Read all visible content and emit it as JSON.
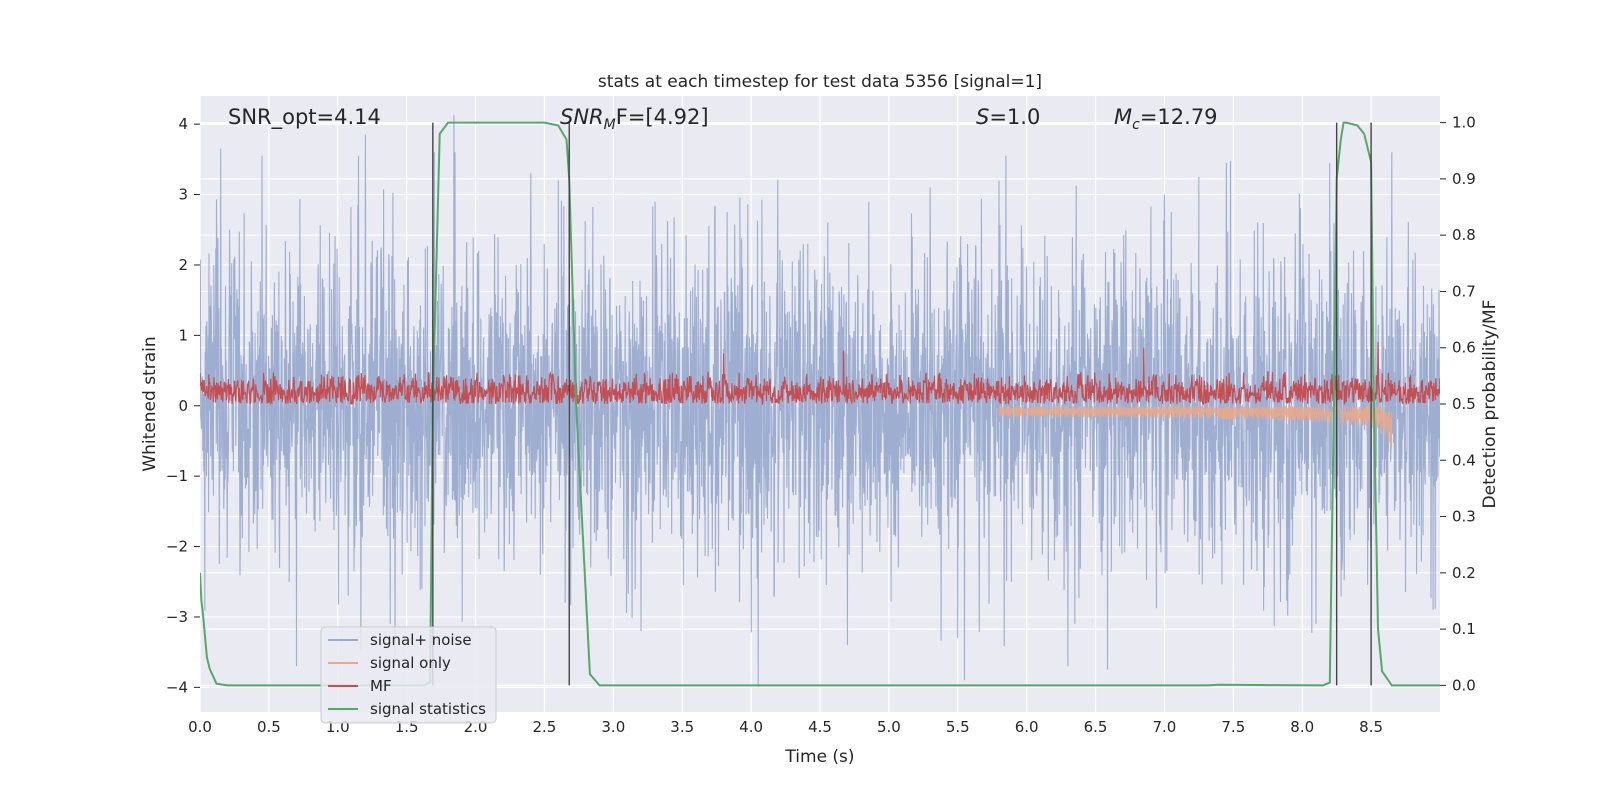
{
  "chart_data": {
    "type": "line",
    "title": "stats at each timestep for test data 5356 [signal=1]",
    "xlabel": "Time (s)",
    "ylabel": "Whitened strain",
    "y2label": "Detection probability/MF",
    "xlim": [
      0.0,
      9.0
    ],
    "ylim": [
      -4.35,
      4.4
    ],
    "y2lim": [
      -0.0473,
      1.0473
    ],
    "x_ticks": [
      0.0,
      0.5,
      1.0,
      1.5,
      2.0,
      2.5,
      3.0,
      3.5,
      4.0,
      4.5,
      5.0,
      5.5,
      6.0,
      6.5,
      7.0,
      7.5,
      8.0,
      8.5
    ],
    "x_tick_labels": [
      "0.0",
      "0.5",
      "1.0",
      "1.5",
      "2.0",
      "2.5",
      "3.0",
      "3.5",
      "4.0",
      "4.5",
      "5.0",
      "5.5",
      "6.0",
      "6.5",
      "7.0",
      "7.5",
      "8.0",
      "8.5"
    ],
    "y_ticks": [
      -4,
      -3,
      -2,
      -1,
      0,
      1,
      2,
      3,
      4
    ],
    "y_tick_labels": [
      "−4",
      "−3",
      "−2",
      "−1",
      "0",
      "1",
      "2",
      "3",
      "4"
    ],
    "y2_ticks": [
      0.0,
      0.1,
      0.2,
      0.3,
      0.4,
      0.5,
      0.6,
      0.7,
      0.8,
      0.9,
      1.0
    ],
    "y2_tick_labels": [
      "0.0",
      "0.1",
      "0.2",
      "0.3",
      "0.4",
      "0.5",
      "0.6",
      "0.7",
      "0.8",
      "0.9",
      "1.0"
    ],
    "grid": true,
    "legend_position": "lower-left",
    "annotations": [
      {
        "text": "SNR_opt=4.14"
      },
      {
        "text": "SNR",
        "sub": "M",
        "rest": "F=[4.92]"
      },
      {
        "text": "S",
        "rest": "=1.0"
      },
      {
        "text": "M",
        "sub": "c",
        "rest": "=12.79"
      }
    ],
    "vertical_lines_x": [
      1.69,
      2.68,
      8.25,
      8.5
    ],
    "series": [
      {
        "name": "signal+ noise",
        "color": "#9aabcf",
        "axis": "left",
        "kind": "noise",
        "amplitude_p98": 2.6,
        "peaks": [
          [
            0.1,
            2.0
          ],
          [
            0.15,
            3.65
          ],
          [
            0.45,
            3.55
          ],
          [
            0.7,
            -3.7
          ],
          [
            1.15,
            3.55
          ],
          [
            1.2,
            3.85
          ],
          [
            1.38,
            -3.1
          ],
          [
            1.7,
            3.6
          ],
          [
            1.85,
            3.6
          ],
          [
            2.4,
            3.3
          ],
          [
            2.6,
            3.2
          ],
          [
            2.65,
            -2.8
          ],
          [
            3.2,
            -3.2
          ],
          [
            4.05,
            -4.0
          ],
          [
            4.7,
            -3.4
          ],
          [
            5.3,
            3.1
          ],
          [
            5.5,
            -3.3
          ],
          [
            5.55,
            -3.9
          ],
          [
            5.8,
            3.2
          ],
          [
            5.85,
            3.55
          ],
          [
            6.3,
            -3.7
          ],
          [
            6.35,
            -3.1
          ],
          [
            7.0,
            3.0
          ],
          [
            7.25,
            3.25
          ],
          [
            7.45,
            3.45
          ],
          [
            8.1,
            -3.1
          ],
          [
            8.2,
            3.45
          ],
          [
            8.65,
            3.6
          ],
          [
            8.95,
            -2.9
          ]
        ]
      },
      {
        "name": "signal only",
        "color": "#e8a88a",
        "axis": "left",
        "kind": "chirp",
        "t_start": 5.8,
        "t_merge": 8.65,
        "peak_amplitude": 0.85
      },
      {
        "name": "MF",
        "color": "#c44e52",
        "axis": "right",
        "kind": "mf",
        "baseline": 0.505,
        "range": [
          0.5,
          0.56
        ],
        "peaks": [
          [
            3.8,
            0.59
          ],
          [
            4.67,
            0.595
          ],
          [
            6.85,
            0.6
          ],
          [
            8.55,
            0.61
          ]
        ]
      },
      {
        "name": "signal statistics",
        "color": "#55a868",
        "axis": "right",
        "kind": "step",
        "x": [
          0.0,
          0.01,
          0.02,
          0.05,
          0.07,
          0.12,
          0.2,
          1.62,
          1.67,
          1.69,
          1.74,
          1.8,
          2.5,
          2.6,
          2.66,
          2.68,
          2.73,
          2.83,
          2.9,
          7.3,
          7.4,
          8.15,
          8.2,
          8.23,
          8.25,
          8.28,
          8.3,
          8.32,
          8.4,
          8.45,
          8.5,
          8.52,
          8.55,
          8.58,
          8.65,
          8.7,
          9.0
        ],
        "y": [
          0.2,
          0.15,
          0.13,
          0.05,
          0.03,
          0.003,
          0.0,
          0.0,
          0.005,
          0.5,
          0.98,
          1.0,
          1.0,
          0.995,
          0.97,
          0.9,
          0.5,
          0.02,
          0.0,
          0.0,
          0.001,
          0.0,
          0.005,
          0.5,
          0.9,
          0.97,
          1.0,
          1.0,
          0.995,
          0.98,
          0.93,
          0.5,
          0.1,
          0.025,
          0.0,
          0.0,
          0.0
        ]
      }
    ]
  }
}
